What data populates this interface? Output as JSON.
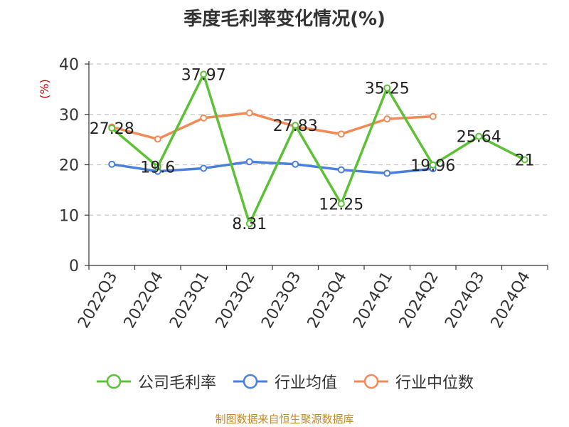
{
  "chart_data": {
    "type": "line",
    "title": "季度毛利率变化情况(%)",
    "ylabel": "(%)",
    "xlabel": "",
    "categories": [
      "2022Q3",
      "2022Q4",
      "2023Q1",
      "2023Q2",
      "2023Q3",
      "2023Q4",
      "2024Q1",
      "2024Q2",
      "2024Q3",
      "2024Q4"
    ],
    "ylim": [
      0,
      40
    ],
    "yticks": [
      0,
      10,
      20,
      30,
      40
    ],
    "grid": true,
    "legend_position": "bottom",
    "series": [
      {
        "name": "公司毛利率",
        "color": "#5cc136",
        "values": [
          27.28,
          19.6,
          37.97,
          8.31,
          27.83,
          12.25,
          35.25,
          19.96,
          25.64,
          21
        ],
        "labels": [
          "27.28",
          "19.6",
          "37.97",
          "8.31",
          "27.83",
          "12.25",
          "35.25",
          "19.96",
          "25.64",
          "21"
        ]
      },
      {
        "name": "行业均值",
        "color": "#4a7fdc",
        "values": [
          20.1,
          18.7,
          19.3,
          20.6,
          20.1,
          19.0,
          18.3,
          19.2,
          null,
          null
        ]
      },
      {
        "name": "行业中位数",
        "color": "#f28a57",
        "values": [
          27.5,
          25.1,
          29.3,
          30.3,
          27.6,
          26.1,
          29.1,
          29.6,
          null,
          null
        ]
      }
    ]
  },
  "source_note": "制图数据来自恒生聚源数据库"
}
